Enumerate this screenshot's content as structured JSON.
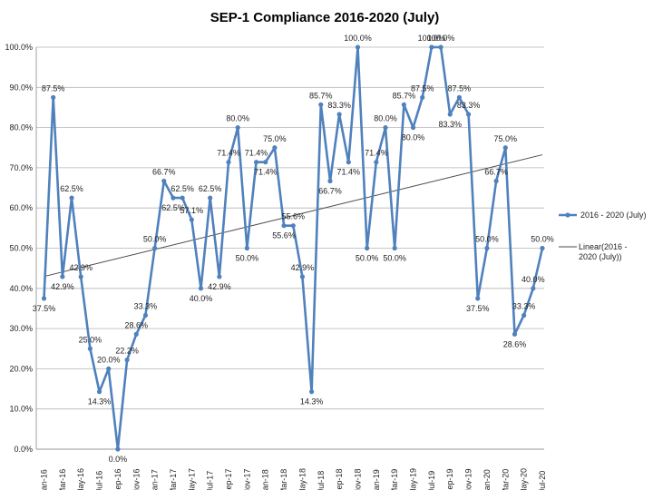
{
  "chart_data": {
    "type": "line",
    "title": "SEP-1 Compliance 2016-2020 (July)",
    "xlabel": "",
    "ylabel": "",
    "ylim": [
      0,
      100
    ],
    "yticks": [
      "0.0%",
      "10.0%",
      "20.0%",
      "30.0%",
      "40.0%",
      "50.0%",
      "60.0%",
      "70.0%",
      "80.0%",
      "90.0%",
      "100.0%"
    ],
    "grid": true,
    "legend_position": "right",
    "x_tick_labels": [
      "Jan-16",
      "Mar-16",
      "May-16",
      "Jul-16",
      "Sep-16",
      "Nov-16",
      "Jan-17",
      "Mar-17",
      "May-17",
      "Jul-17",
      "Sep-17",
      "Nov-17",
      "Jan-18",
      "Mar-18",
      "May-18",
      "Jul-18",
      "Sep-18",
      "Nov-18",
      "Jan-19",
      "Mar-19",
      "May-19",
      "Jul-19",
      "Sep-19",
      "Nov-19",
      "Jan-20",
      "Mar-20",
      "May-20",
      "Jul-20"
    ],
    "series": [
      {
        "name": "2016 - 2020 (July)",
        "color": "#4f81bd",
        "values": [
          37.5,
          87.5,
          42.9,
          62.5,
          42.9,
          25.0,
          14.3,
          20.0,
          0.0,
          22.2,
          28.6,
          33.3,
          50.0,
          66.7,
          62.5,
          62.5,
          57.1,
          40.0,
          62.5,
          42.9,
          71.4,
          80.0,
          50.0,
          71.4,
          71.4,
          75.0,
          55.6,
          55.6,
          42.9,
          14.3,
          85.7,
          66.7,
          83.3,
          71.4,
          100.0,
          50.0,
          71.4,
          80.0,
          50.0,
          85.7,
          80.0,
          87.5,
          100.0,
          100.0,
          83.3,
          87.5,
          83.3,
          37.5,
          50.0,
          66.7,
          75.0,
          28.6,
          33.3,
          40.0,
          50.0
        ],
        "labels": [
          "37.5%",
          "87.5%",
          "42.9%",
          "62.5%",
          "42.9%",
          "25.0%",
          "14.3%",
          "20.0%",
          "0.0%",
          "22.2%",
          "28.6%",
          "33.3%",
          "50.0%",
          "66.7%",
          "62.5%",
          "62.5%",
          "57.1%",
          "40.0%",
          "62.5%",
          "42.9%",
          "71.4%",
          "80.0%",
          "50.0%",
          "71.4%",
          "71.4%",
          "75.0%",
          "55.6%",
          "55.6%",
          "42.9%",
          "14.3%",
          "85.7%",
          "66.7%",
          "83.3%",
          "71.4%",
          "100.0%",
          "50.0%",
          "71.4%",
          "80.0%",
          "50.0%",
          "85.7%",
          "80.0%",
          "87.5%",
          "100.0%",
          "100.0%",
          "83.3%",
          "87.5%",
          "83.3%",
          "37.5%",
          "50.0%",
          "66.7%",
          "75.0%",
          "28.6%",
          "33.3%",
          "40.0%",
          "50.0%"
        ]
      }
    ],
    "trendline": {
      "name": "Linear(2016 - 2020 (July))",
      "type": "linear",
      "color": "#4a4a4a"
    }
  }
}
